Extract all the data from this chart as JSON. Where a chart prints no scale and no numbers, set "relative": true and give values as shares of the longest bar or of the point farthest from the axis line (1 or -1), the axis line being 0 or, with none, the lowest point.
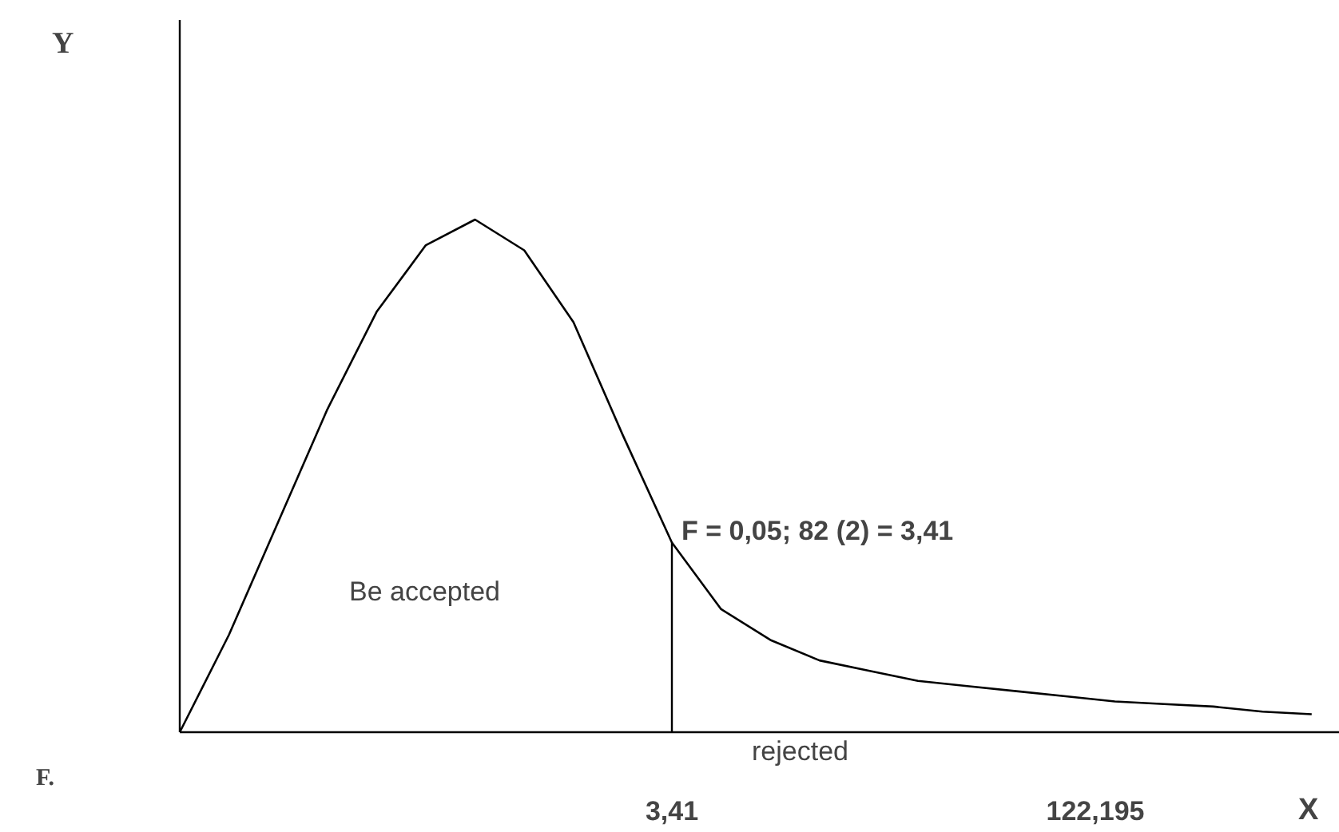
{
  "chart_data": {
    "type": "line",
    "relative": true,
    "xlabel": "X",
    "categories": [
      null,
      null,
      null,
      null,
      null,
      null,
      null,
      null,
      null,
      null,
      null,
      null,
      null,
      null,
      null,
      null,
      null,
      null,
      null,
      null,
      null,
      null,
      null,
      null
    ],
    "values": [
      0,
      0.19,
      0.41,
      0.63,
      0.82,
      0.95,
      1,
      0.94,
      0.8,
      0.58,
      0.37,
      0.24,
      0.18,
      0.14,
      0.12,
      0.1,
      0.09,
      0.08,
      0.07,
      0.06,
      0.055,
      0.05,
      0.04,
      0.035
    ],
    "color": "#000000",
    "annotations": [
      "3,41",
      "122,195",
      "Be accepted",
      "rejected",
      "F.",
      "F = 0,05; 82 (2) = 3,41",
      "Y"
    ]
  }
}
